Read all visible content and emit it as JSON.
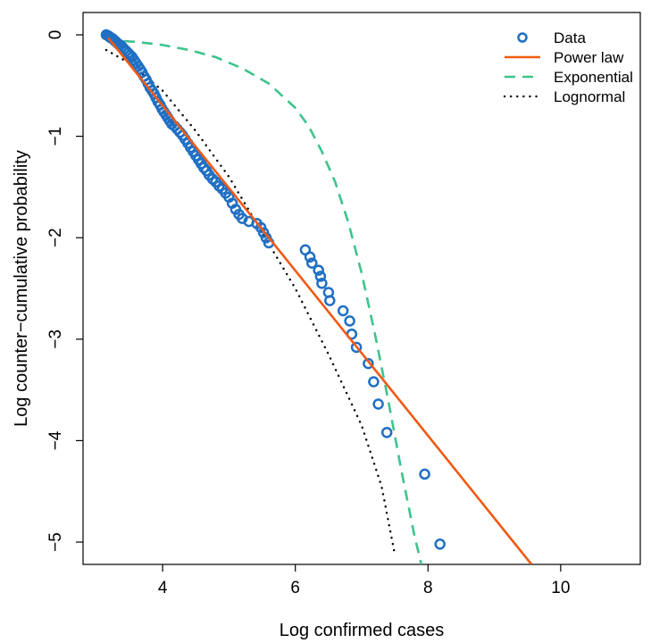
{
  "chart_data": {
    "type": "line",
    "title": "",
    "xlabel": "Log confirmed cases",
    "ylabel": "Log counter−cumulative probability",
    "xlim": [
      2.8,
      11.2
    ],
    "ylim": [
      -5.22,
      0.22
    ],
    "xticks": [
      4,
      6,
      8,
      10
    ],
    "xtick_labels": [
      "4",
      "6",
      "8",
      "10"
    ],
    "yticks": [
      0,
      -1,
      -2,
      -3,
      -4,
      -5
    ],
    "ytick_labels": [
      "0",
      "−1",
      "−2",
      "−3",
      "−4",
      "−5"
    ],
    "grid": false,
    "legend_position": "top-right",
    "series": [
      {
        "name": "Data",
        "kind": "points",
        "color": "#1f6fc4",
        "points": [
          [
            3.15,
            0.0
          ],
          [
            3.18,
            -0.01
          ],
          [
            3.2,
            -0.02
          ],
          [
            3.22,
            -0.03
          ],
          [
            3.25,
            -0.04
          ],
          [
            3.28,
            -0.06
          ],
          [
            3.3,
            -0.07
          ],
          [
            3.33,
            -0.09
          ],
          [
            3.36,
            -0.1
          ],
          [
            3.39,
            -0.12
          ],
          [
            3.42,
            -0.14
          ],
          [
            3.45,
            -0.16
          ],
          [
            3.48,
            -0.18
          ],
          [
            3.51,
            -0.2
          ],
          [
            3.54,
            -0.22
          ],
          [
            3.57,
            -0.25
          ],
          [
            3.6,
            -0.28
          ],
          [
            3.63,
            -0.31
          ],
          [
            3.66,
            -0.34
          ],
          [
            3.69,
            -0.37
          ],
          [
            3.72,
            -0.41
          ],
          [
            3.75,
            -0.44
          ],
          [
            3.78,
            -0.48
          ],
          [
            3.81,
            -0.52
          ],
          [
            3.84,
            -0.55
          ],
          [
            3.87,
            -0.58
          ],
          [
            3.9,
            -0.62
          ],
          [
            3.93,
            -0.66
          ],
          [
            3.96,
            -0.69
          ],
          [
            3.99,
            -0.73
          ],
          [
            4.02,
            -0.76
          ],
          [
            4.05,
            -0.79
          ],
          [
            4.08,
            -0.82
          ],
          [
            4.11,
            -0.85
          ],
          [
            4.14,
            -0.88
          ],
          [
            4.18,
            -0.9
          ],
          [
            4.22,
            -0.93
          ],
          [
            4.26,
            -0.96
          ],
          [
            4.3,
            -0.99
          ],
          [
            4.34,
            -1.03
          ],
          [
            4.38,
            -1.07
          ],
          [
            4.42,
            -1.11
          ],
          [
            4.46,
            -1.15
          ],
          [
            4.5,
            -1.19
          ],
          [
            4.54,
            -1.23
          ],
          [
            4.58,
            -1.27
          ],
          [
            4.62,
            -1.31
          ],
          [
            4.66,
            -1.34
          ],
          [
            4.7,
            -1.38
          ],
          [
            4.75,
            -1.42
          ],
          [
            4.8,
            -1.45
          ],
          [
            4.85,
            -1.49
          ],
          [
            4.9,
            -1.52
          ],
          [
            4.95,
            -1.56
          ],
          [
            5.0,
            -1.6
          ],
          [
            5.05,
            -1.66
          ],
          [
            5.1,
            -1.72
          ],
          [
            5.15,
            -1.77
          ],
          [
            5.2,
            -1.81
          ],
          [
            5.3,
            -1.84
          ],
          [
            5.42,
            -1.86
          ],
          [
            5.48,
            -1.9
          ],
          [
            5.52,
            -1.95
          ],
          [
            5.56,
            -2.0
          ],
          [
            5.6,
            -2.05
          ],
          [
            6.15,
            -2.12
          ],
          [
            6.22,
            -2.19
          ],
          [
            6.25,
            -2.25
          ],
          [
            6.35,
            -2.32
          ],
          [
            6.38,
            -2.38
          ],
          [
            6.4,
            -2.45
          ],
          [
            6.5,
            -2.54
          ],
          [
            6.52,
            -2.62
          ],
          [
            6.72,
            -2.72
          ],
          [
            6.82,
            -2.82
          ],
          [
            6.85,
            -2.95
          ],
          [
            6.92,
            -3.08
          ],
          [
            7.1,
            -3.24
          ],
          [
            7.18,
            -3.42
          ],
          [
            7.25,
            -3.64
          ],
          [
            7.38,
            -3.92
          ],
          [
            7.95,
            -4.33
          ],
          [
            8.18,
            -5.02
          ]
        ]
      },
      {
        "name": "Power law",
        "kind": "line",
        "color": "#f05a14",
        "x": [
          3.18,
          9.56
        ],
        "y": [
          -0.03,
          -5.22
        ]
      },
      {
        "name": "Exponential",
        "kind": "dashed",
        "color": "#3cc48c",
        "x": [
          3.15,
          3.6,
          4.0,
          4.4,
          4.8,
          5.2,
          5.6,
          6.0,
          6.2,
          6.4,
          6.6,
          6.8,
          7.0,
          7.2,
          7.4,
          7.6,
          7.8,
          7.9
        ],
        "y": [
          -0.05,
          -0.07,
          -0.1,
          -0.15,
          -0.22,
          -0.33,
          -0.48,
          -0.72,
          -0.9,
          -1.15,
          -1.45,
          -1.85,
          -2.35,
          -2.95,
          -3.6,
          -4.3,
          -4.95,
          -5.22
        ]
      },
      {
        "name": "Lognormal",
        "kind": "dotted",
        "color": "#000000",
        "x": [
          3.15,
          3.5,
          4.0,
          4.5,
          5.0,
          5.5,
          6.0,
          6.5,
          7.0,
          7.3,
          7.5
        ],
        "y": [
          -0.15,
          -0.28,
          -0.55,
          -0.95,
          -1.4,
          -1.95,
          -2.5,
          -3.15,
          -3.85,
          -4.45,
          -5.12
        ]
      }
    ]
  }
}
